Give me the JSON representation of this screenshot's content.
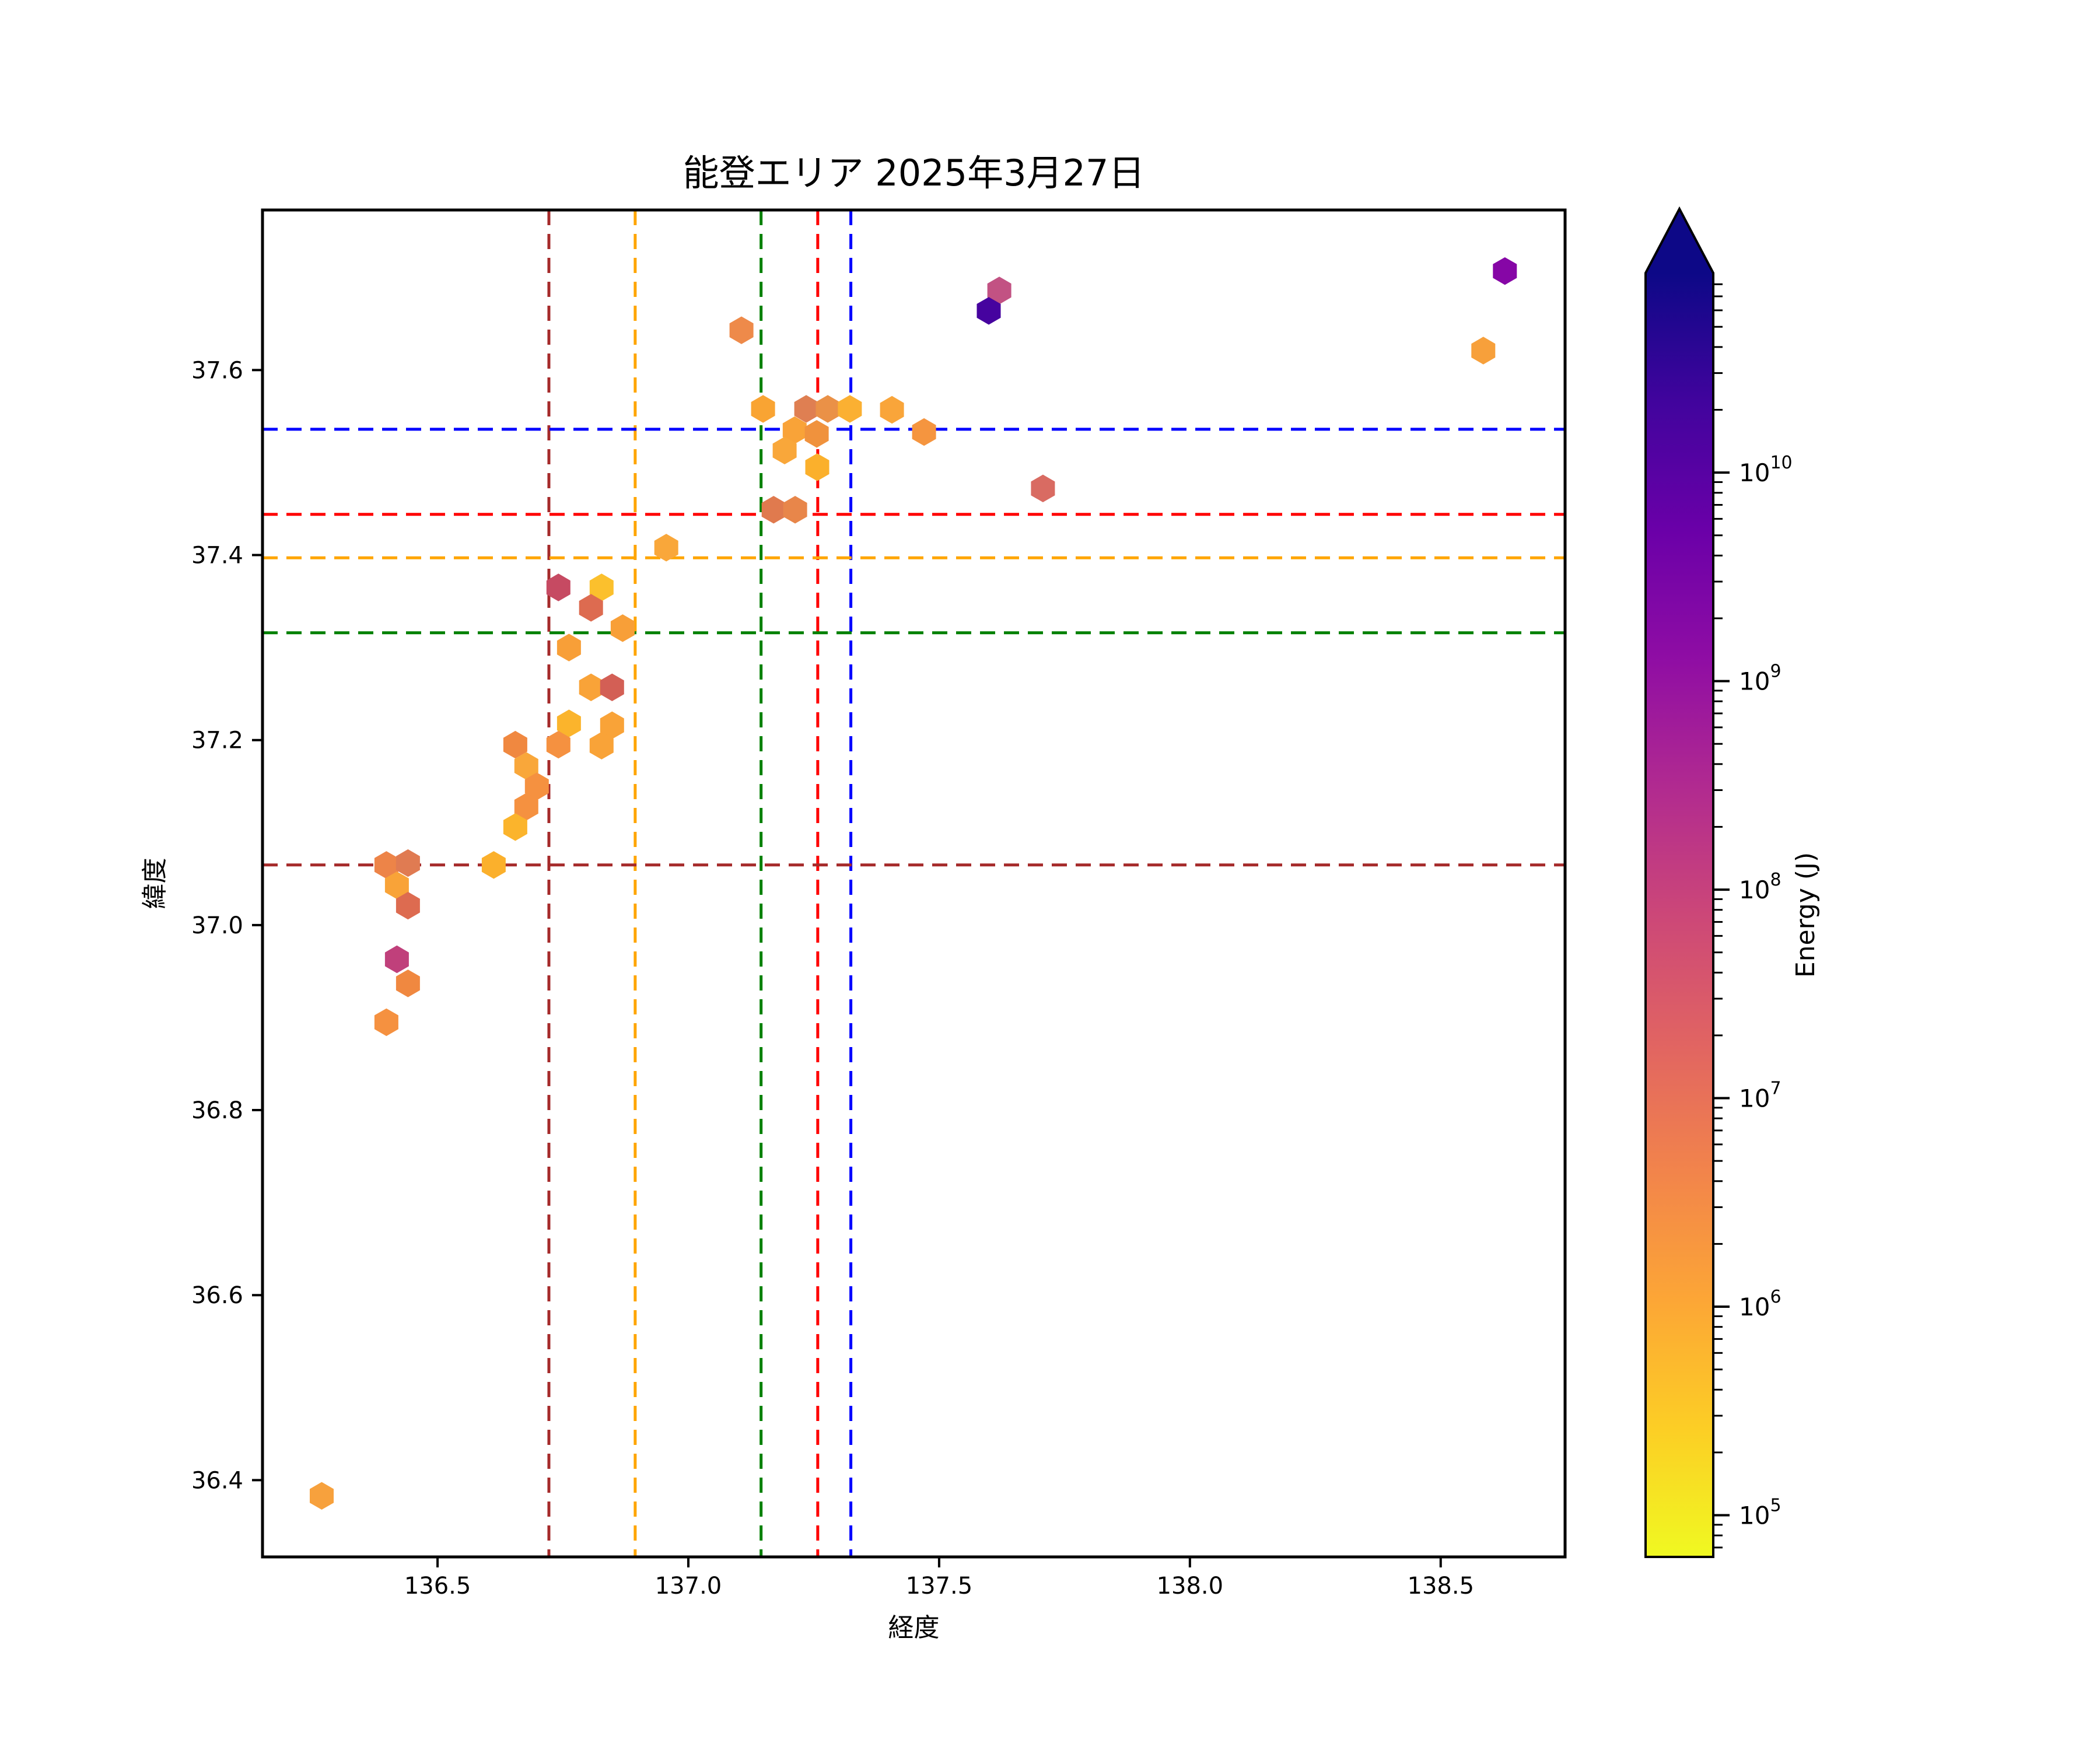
{
  "chart_data": {
    "type": "scatter",
    "marker": "hexagon",
    "title": "能登エリア 2025年3月27日",
    "xlabel": "経度",
    "ylabel": "緯度",
    "xlim": [
      136.151,
      138.748
    ],
    "ylim": [
      36.317,
      37.773
    ],
    "xticks": [
      136.5,
      137.0,
      137.5,
      138.0,
      138.5
    ],
    "yticks": [
      36.4,
      36.6,
      36.8,
      37.0,
      37.2,
      37.4,
      37.6
    ],
    "grid": false,
    "legend": "none",
    "points": [
      {
        "lon": 138.585,
        "lat": 37.621,
        "energy_j": 1500000.0,
        "color": "#f7a03b"
      },
      {
        "lon": 138.628,
        "lat": 37.707,
        "energy_j": 2000000000.0,
        "color": "#8606a6"
      },
      {
        "lon": 137.106,
        "lat": 37.643,
        "energy_j": 5000000.0,
        "color": "#ee8a4a"
      },
      {
        "lon": 137.62,
        "lat": 37.686,
        "energy_j": 100000000.0,
        "color": "#c25283"
      },
      {
        "lon": 137.599,
        "lat": 37.664,
        "energy_j": 20000000000.0,
        "color": "#46039f"
      },
      {
        "lon": 137.149,
        "lat": 37.558,
        "energy_j": 1300000.0,
        "color": "#f9a433"
      },
      {
        "lon": 137.235,
        "lat": 37.558,
        "energy_j": 8000000.0,
        "color": "#df7f52"
      },
      {
        "lon": 137.278,
        "lat": 37.558,
        "energy_j": 3500000.0,
        "color": "#ea9147"
      },
      {
        "lon": 137.322,
        "lat": 37.558,
        "energy_j": 700000.0,
        "color": "#fbb032"
      },
      {
        "lon": 137.406,
        "lat": 37.557,
        "energy_j": 1200000.0,
        "color": "#f9a53a"
      },
      {
        "lon": 137.47,
        "lat": 37.533,
        "energy_j": 2000000.0,
        "color": "#f5953f"
      },
      {
        "lon": 137.212,
        "lat": 37.535,
        "energy_j": 1400000.0,
        "color": "#f9a338"
      },
      {
        "lon": 137.192,
        "lat": 37.513,
        "energy_j": 1100000.0,
        "color": "#f9a73a"
      },
      {
        "lon": 137.256,
        "lat": 37.531,
        "energy_j": 2300000.0,
        "color": "#f0923d"
      },
      {
        "lon": 137.257,
        "lat": 37.495,
        "energy_j": 700000.0,
        "color": "#fbb02c"
      },
      {
        "lon": 137.17,
        "lat": 37.449,
        "energy_j": 6000000.0,
        "color": "#e07a4e"
      },
      {
        "lon": 137.213,
        "lat": 37.449,
        "energy_j": 4000000.0,
        "color": "#e8864a"
      },
      {
        "lon": 137.707,
        "lat": 37.472,
        "energy_j": 16000000.0,
        "color": "#d96b62"
      },
      {
        "lon": 136.956,
        "lat": 37.408,
        "energy_j": 1100000.0,
        "color": "#f9a73a"
      },
      {
        "lon": 136.827,
        "lat": 37.365,
        "energy_j": 400000.0,
        "color": "#fbc02d"
      },
      {
        "lon": 136.741,
        "lat": 37.365,
        "energy_j": 50000000.0,
        "color": "#c64a62"
      },
      {
        "lon": 136.806,
        "lat": 37.343,
        "energy_j": 12000000.0,
        "color": "#dd6b50"
      },
      {
        "lon": 136.869,
        "lat": 37.321,
        "energy_j": 1500000.0,
        "color": "#f89f38"
      },
      {
        "lon": 136.762,
        "lat": 37.3,
        "energy_j": 1500000.0,
        "color": "#f89f38"
      },
      {
        "lon": 136.806,
        "lat": 37.257,
        "energy_j": 1400000.0,
        "color": "#f9a338"
      },
      {
        "lon": 136.848,
        "lat": 37.257,
        "energy_j": 24000000.0,
        "color": "#d35f55"
      },
      {
        "lon": 136.762,
        "lat": 37.218,
        "energy_j": 600000.0,
        "color": "#fbb42c"
      },
      {
        "lon": 136.741,
        "lat": 37.195,
        "energy_j": 2500000.0,
        "color": "#f59140"
      },
      {
        "lon": 136.848,
        "lat": 37.216,
        "energy_j": 1300000.0,
        "color": "#f9a338"
      },
      {
        "lon": 136.827,
        "lat": 37.194,
        "energy_j": 1400000.0,
        "color": "#f9a338"
      },
      {
        "lon": 136.655,
        "lat": 37.195,
        "energy_j": 4000000.0,
        "color": "#f08840"
      },
      {
        "lon": 136.677,
        "lat": 37.172,
        "energy_j": 1200000.0,
        "color": "#f9a73a"
      },
      {
        "lon": 136.698,
        "lat": 37.15,
        "energy_j": 2500000.0,
        "color": "#f59140"
      },
      {
        "lon": 136.677,
        "lat": 37.128,
        "energy_j": 2700000.0,
        "color": "#f59140"
      },
      {
        "lon": 136.655,
        "lat": 37.106,
        "energy_j": 600000.0,
        "color": "#fbb42c"
      },
      {
        "lon": 136.398,
        "lat": 37.065,
        "energy_j": 5000000.0,
        "color": "#ed8448"
      },
      {
        "lon": 136.441,
        "lat": 37.067,
        "energy_j": 8000000.0,
        "color": "#e07b52"
      },
      {
        "lon": 136.419,
        "lat": 37.043,
        "energy_j": 1400000.0,
        "color": "#f9a338"
      },
      {
        "lon": 136.441,
        "lat": 37.021,
        "energy_j": 13000000.0,
        "color": "#dd6b50"
      },
      {
        "lon": 136.612,
        "lat": 37.065,
        "energy_j": 700000.0,
        "color": "#fbb02c"
      },
      {
        "lon": 136.441,
        "lat": 36.937,
        "energy_j": 4500000.0,
        "color": "#f08840"
      },
      {
        "lon": 136.419,
        "lat": 36.963,
        "energy_j": 130000000.0,
        "color": "#c0407b"
      },
      {
        "lon": 136.398,
        "lat": 36.895,
        "energy_j": 2600000.0,
        "color": "#f59140"
      },
      {
        "lon": 136.269,
        "lat": 36.383,
        "energy_j": 1500000.0,
        "color": "#f7a13d"
      }
    ],
    "crosshairs": {
      "vlines": [
        {
          "name": "darkred",
          "color": "#a52a2a",
          "lon": 136.722
        },
        {
          "name": "orange",
          "color": "#ffa500",
          "lon": 136.894
        },
        {
          "name": "green",
          "color": "#008000",
          "lon": 137.145
        },
        {
          "name": "red",
          "color": "#ff0000",
          "lon": 137.258
        },
        {
          "name": "blue",
          "color": "#0000ff",
          "lon": 137.324
        }
      ],
      "hlines": [
        {
          "name": "darkred",
          "color": "#a52a2a",
          "lat": 37.065
        },
        {
          "name": "orange",
          "color": "#ffa500",
          "lat": 37.397
        },
        {
          "name": "green",
          "color": "#008000",
          "lat": 37.316
        },
        {
          "name": "red",
          "color": "#ff0000",
          "lat": 37.444
        },
        {
          "name": "blue",
          "color": "#0000ff",
          "lat": 37.536
        }
      ],
      "dash": [
        26,
        15
      ]
    },
    "colorbar": {
      "label": "Energy (J)",
      "scale": "log",
      "extend": "max",
      "colormap": "plasma_r",
      "log_min": 4.8,
      "log_max": 10.957,
      "tick_exponents": [
        10,
        9,
        8,
        7,
        6,
        5
      ],
      "tick_base": "10",
      "gradient_top_to_bottom": [
        "#0d0887",
        "#41049d",
        "#6a00a8",
        "#8f0da4",
        "#b12a90",
        "#cc4778",
        "#e16462",
        "#f2844b",
        "#fca636",
        "#fcce25",
        "#f0f921"
      ],
      "arrow_color": "#0d0887"
    }
  }
}
